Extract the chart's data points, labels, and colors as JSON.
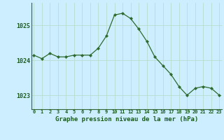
{
  "hours": [
    0,
    1,
    2,
    3,
    4,
    5,
    6,
    7,
    8,
    9,
    10,
    11,
    12,
    13,
    14,
    15,
    16,
    17,
    18,
    19,
    20,
    21,
    22,
    23
  ],
  "pressure": [
    1024.15,
    1024.05,
    1024.2,
    1024.1,
    1024.1,
    1024.15,
    1024.15,
    1024.15,
    1024.35,
    1024.7,
    1025.3,
    1025.35,
    1025.2,
    1024.9,
    1024.55,
    1024.1,
    1023.85,
    1023.6,
    1023.25,
    1023.0,
    1023.2,
    1023.25,
    1023.2,
    1023.0
  ],
  "line_color": "#2d6a2d",
  "marker": "D",
  "marker_size": 2.2,
  "bg_color": "#cceeff",
  "grid_color": "#aaddcc",
  "yticks": [
    1023,
    1024,
    1025
  ],
  "xticks": [
    0,
    1,
    2,
    3,
    4,
    5,
    6,
    7,
    8,
    9,
    10,
    11,
    12,
    13,
    14,
    15,
    16,
    17,
    18,
    19,
    20,
    21,
    22,
    23
  ],
  "xlabel": "Graphe pression niveau de la mer (hPa)",
  "xlabel_color": "#1a5c1a",
  "tick_color": "#1a5c1a",
  "axis_color": "#336633",
  "ylim": [
    1022.6,
    1025.65
  ],
  "xlim": [
    -0.3,
    23.3
  ]
}
